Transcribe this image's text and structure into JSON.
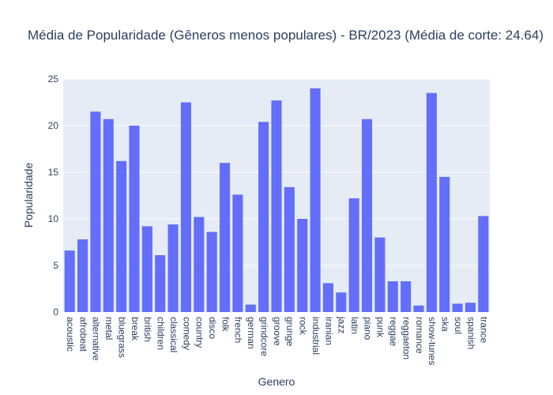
{
  "chart_data": {
    "type": "bar",
    "title": "Média de Popularidade (Gêneros menos populares) - BR/2023 (Média de corte: 24.64)",
    "xlabel": "Genero",
    "ylabel": "Popularidade",
    "ylim": [
      0,
      25
    ],
    "yticks": [
      0,
      5,
      10,
      15,
      20,
      25
    ],
    "grid": true,
    "colors": {
      "bar": "#636efa",
      "plot_bg": "#e5ecf6",
      "grid": "#ffffff",
      "text": "#2a3f5f"
    },
    "categories": [
      "acoustic",
      "afrobeat",
      "alternative",
      "metal",
      "bluegrass",
      "break",
      "british",
      "children",
      "classical",
      "comedy",
      "country",
      "disco",
      "folk",
      "french",
      "german",
      "grindcore",
      "groove",
      "grunge",
      "rock",
      "industrial",
      "iranian",
      "jazz",
      "latin",
      "piano",
      "punk",
      "reggae",
      "reggaeton",
      "romance",
      "show-tunes",
      "ska",
      "soul",
      "spanish",
      "trance"
    ],
    "values": [
      6.6,
      7.8,
      21.5,
      20.7,
      16.2,
      20.0,
      9.2,
      6.1,
      9.4,
      22.5,
      10.2,
      8.6,
      16.0,
      12.6,
      0.8,
      20.4,
      22.7,
      13.4,
      10.0,
      24.0,
      3.1,
      2.1,
      12.2,
      20.7,
      8.0,
      3.3,
      3.3,
      0.7,
      23.5,
      14.5,
      0.9,
      1.0,
      10.3
    ]
  }
}
